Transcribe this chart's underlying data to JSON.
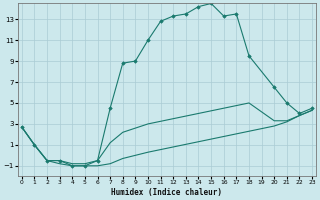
{
  "xlabel": "Humidex (Indice chaleur)",
  "bg_color": "#cce8ec",
  "grid_color": "#aaccd4",
  "line_color": "#1a7a6e",
  "xlim": [
    -0.3,
    23.3
  ],
  "ylim": [
    -2.0,
    14.5
  ],
  "xticks": [
    0,
    1,
    2,
    3,
    4,
    5,
    6,
    7,
    8,
    9,
    10,
    11,
    12,
    13,
    14,
    15,
    16,
    17,
    18,
    19,
    20,
    21,
    22,
    23
  ],
  "yticks": [
    -1,
    1,
    3,
    5,
    7,
    9,
    11,
    13
  ],
  "main_x": [
    0,
    1,
    2,
    3,
    4,
    5,
    6,
    7,
    8,
    9,
    10,
    11,
    12,
    13,
    14,
    15,
    16,
    17,
    18,
    20,
    21,
    22,
    23
  ],
  "main_y": [
    2.7,
    1.0,
    -0.5,
    -0.5,
    -1.0,
    -1.0,
    -0.5,
    4.5,
    8.8,
    9.0,
    11.0,
    12.8,
    13.3,
    13.5,
    14.2,
    14.5,
    13.3,
    13.5,
    9.5,
    6.5,
    5.0,
    4.0,
    4.5
  ],
  "low1_x": [
    0,
    1,
    2,
    3,
    4,
    5,
    6,
    7,
    8,
    10,
    12,
    14,
    16,
    18,
    20,
    21,
    22,
    23
  ],
  "low1_y": [
    2.7,
    1.0,
    -0.5,
    -0.8,
    -1.0,
    -1.0,
    -1.0,
    -0.8,
    -0.3,
    0.3,
    0.8,
    1.3,
    1.8,
    2.3,
    2.8,
    3.2,
    3.8,
    4.3
  ],
  "low2_x": [
    0,
    1,
    2,
    3,
    4,
    5,
    6,
    7,
    8,
    10,
    12,
    14,
    16,
    18,
    20,
    21,
    22,
    23
  ],
  "low2_y": [
    2.7,
    1.0,
    -0.5,
    -0.5,
    -0.8,
    -0.8,
    -0.5,
    1.2,
    2.2,
    3.0,
    3.5,
    4.0,
    4.5,
    5.0,
    3.3,
    3.3,
    3.8,
    4.3
  ]
}
